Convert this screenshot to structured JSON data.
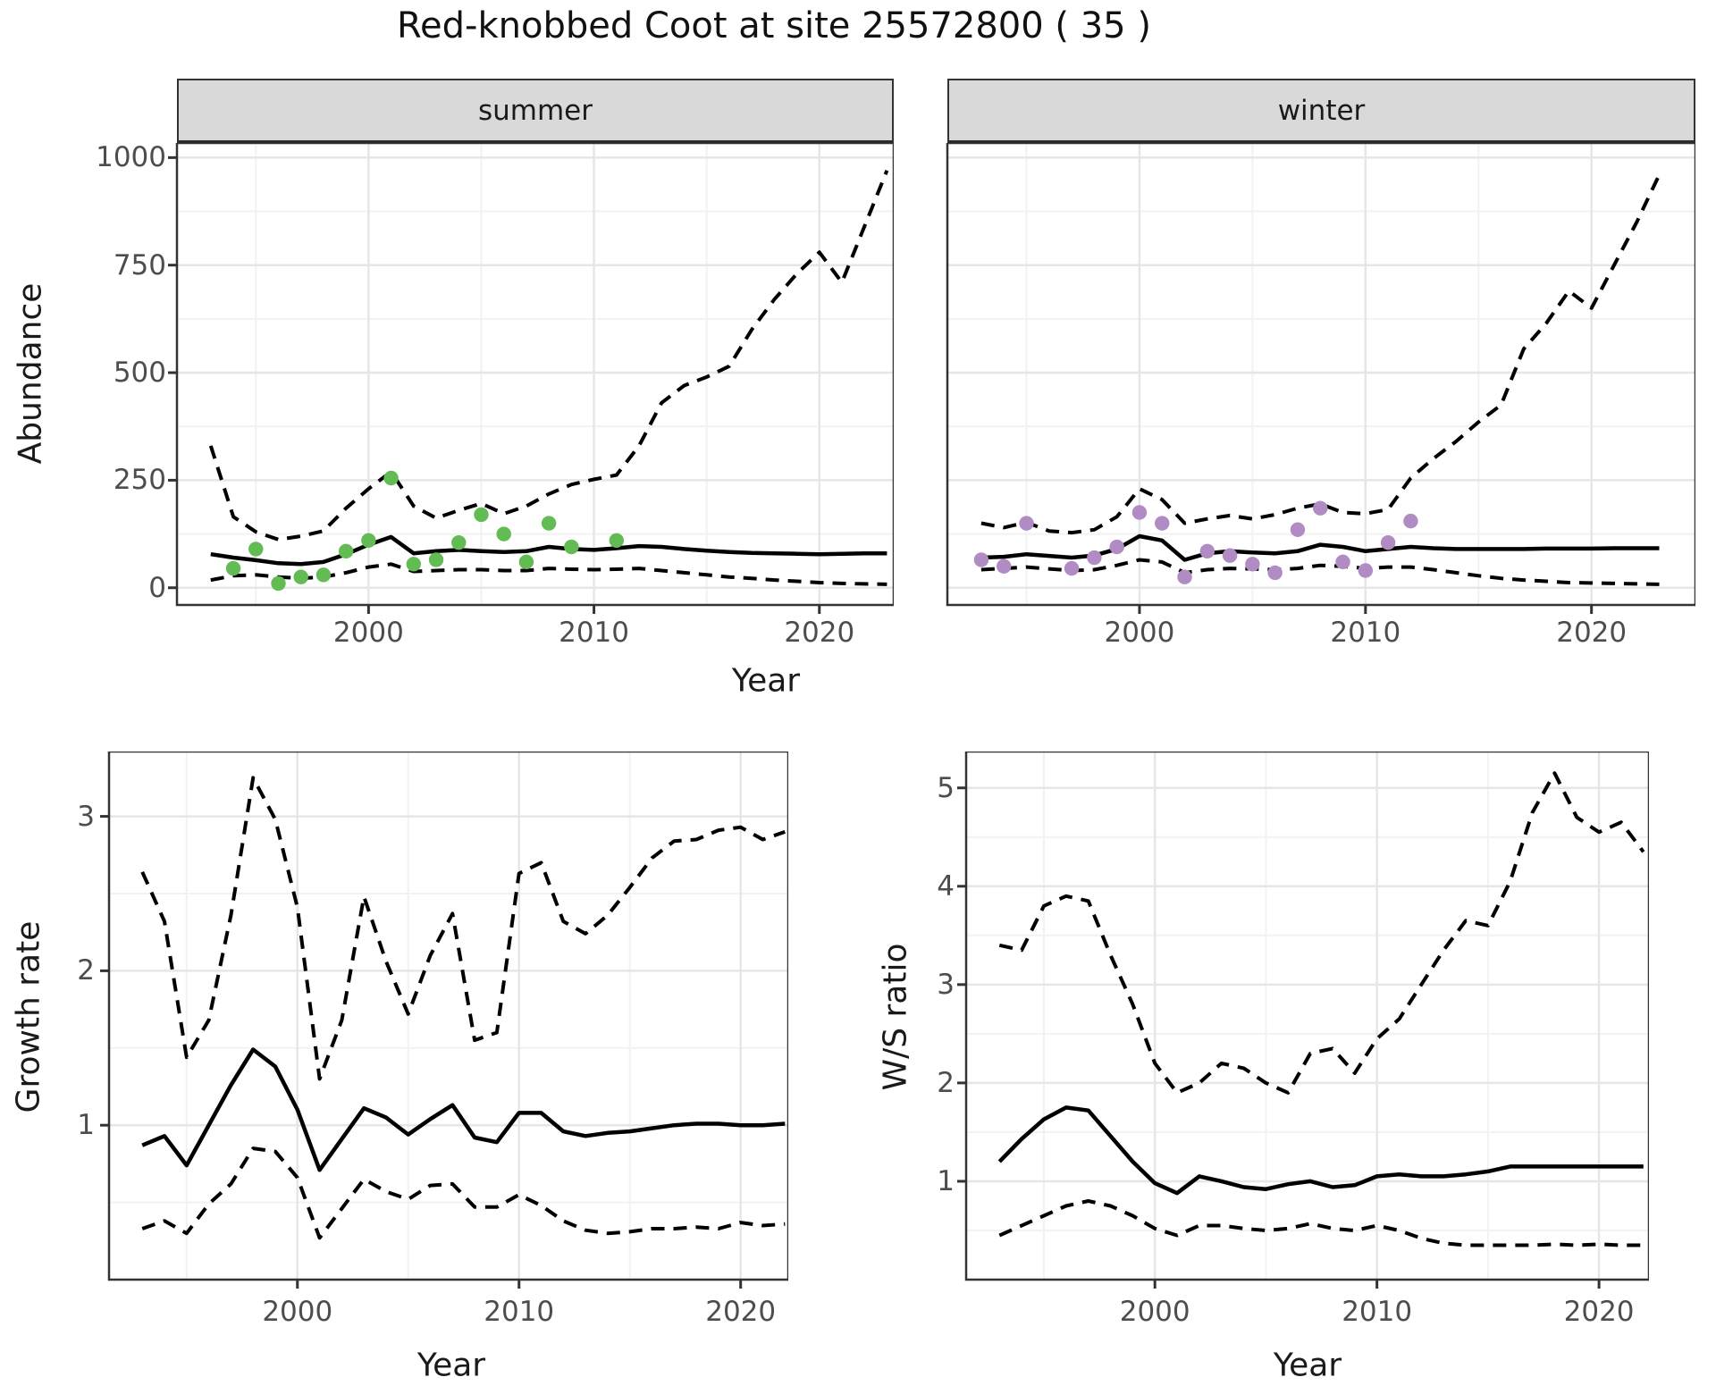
{
  "title": "Red-knobbed Coot at site 25572800 ( 35 )",
  "colors": {
    "summer_point": "#63bb54",
    "winter_point": "#b18bc4",
    "line": "#000000",
    "tick_text": "#4d4d4d",
    "axis_text": "#1a1a1a",
    "strip_bg": "#d9d9d9",
    "panel_border": "#333333",
    "grid_major": "#e6e6e6",
    "grid_minor": "#f2f2f2"
  },
  "top": {
    "ylabel": "Abundance",
    "xlabel": "Year",
    "facets": [
      "summer",
      "winter"
    ],
    "yticks": [
      0,
      250,
      500,
      750,
      1000
    ],
    "xticks": [
      2000,
      2010,
      2020
    ]
  },
  "bottom_left": {
    "ylabel": "Growth rate",
    "xlabel": "Year",
    "yticks": [
      1,
      2,
      3
    ],
    "xticks": [
      2000,
      2010,
      2020
    ]
  },
  "bottom_right": {
    "ylabel": "W/S ratio",
    "xlabel": "Year",
    "yticks": [
      1,
      2,
      3,
      4,
      5
    ],
    "xticks": [
      2000,
      2010,
      2020
    ]
  },
  "chart_data": [
    {
      "id": "abundance-summer",
      "type": "line",
      "title": "summer",
      "xlabel": "Year",
      "ylabel": "Abundance",
      "x_range": [
        1991.5,
        2023.3
      ],
      "y_range": [
        -40,
        1034
      ],
      "grid": true,
      "legend": "none",
      "years": [
        1993,
        1994,
        1995,
        1996,
        1997,
        1998,
        1999,
        2000,
        2001,
        2002,
        2003,
        2004,
        2005,
        2006,
        2007,
        2008,
        2009,
        2010,
        2011,
        2012,
        2013,
        2014,
        2015,
        2016,
        2017,
        2018,
        2019,
        2020,
        2021,
        2022,
        2023
      ],
      "series": [
        {
          "name": "estimate",
          "style": "solid",
          "values": [
            78,
            70,
            64,
            57,
            55,
            60,
            78,
            100,
            118,
            80,
            85,
            88,
            85,
            83,
            85,
            95,
            90,
            88,
            92,
            97,
            95,
            90,
            86,
            83,
            81,
            80,
            79,
            78,
            79,
            80,
            80
          ]
        },
        {
          "name": "upper_ci",
          "style": "dashed",
          "values": [
            330,
            165,
            130,
            112,
            120,
            132,
            185,
            230,
            270,
            190,
            162,
            180,
            196,
            172,
            190,
            218,
            240,
            252,
            262,
            330,
            430,
            470,
            490,
            515,
            600,
            670,
            730,
            780,
            710,
            840,
            970
          ]
        },
        {
          "name": "lower_ci",
          "style": "dashed",
          "values": [
            18,
            28,
            30,
            25,
            22,
            25,
            35,
            48,
            55,
            38,
            40,
            42,
            42,
            40,
            40,
            45,
            43,
            42,
            43,
            45,
            40,
            35,
            30,
            25,
            22,
            18,
            15,
            12,
            10,
            9,
            8
          ]
        }
      ],
      "points": {
        "name": "observed_counts",
        "color_key": "summer_point",
        "years": [
          1994,
          1995,
          1996,
          1997,
          1998,
          1999,
          2000,
          2001,
          2002,
          2003,
          2004,
          2005,
          2006,
          2007,
          2008,
          2009,
          2011
        ],
        "values": [
          45,
          90,
          10,
          25,
          30,
          85,
          110,
          255,
          55,
          65,
          105,
          170,
          125,
          60,
          150,
          95,
          110
        ]
      }
    },
    {
      "id": "abundance-winter",
      "type": "line",
      "title": "winter",
      "xlabel": "Year",
      "ylabel": "Abundance",
      "x_range": [
        1991.5,
        2024.6
      ],
      "y_range": [
        -40,
        1034
      ],
      "grid": true,
      "legend": "none",
      "years": [
        1993,
        1994,
        1995,
        1996,
        1997,
        1998,
        1999,
        2000,
        2001,
        2002,
        2003,
        2004,
        2005,
        2006,
        2007,
        2008,
        2009,
        2010,
        2011,
        2012,
        2013,
        2014,
        2015,
        2016,
        2017,
        2018,
        2019,
        2020,
        2021,
        2022,
        2023
      ],
      "series": [
        {
          "name": "estimate",
          "style": "solid",
          "values": [
            70,
            72,
            78,
            74,
            70,
            75,
            90,
            120,
            110,
            65,
            80,
            85,
            82,
            80,
            85,
            100,
            95,
            85,
            90,
            95,
            92,
            90,
            90,
            90,
            90,
            91,
            91,
            91,
            92,
            92,
            92
          ]
        },
        {
          "name": "upper_ci",
          "style": "dashed",
          "values": [
            150,
            140,
            152,
            132,
            128,
            135,
            165,
            230,
            205,
            150,
            160,
            168,
            160,
            170,
            185,
            195,
            175,
            172,
            182,
            255,
            300,
            340,
            385,
            425,
            555,
            615,
            690,
            650,
            750,
            850,
            960
          ]
        },
        {
          "name": "lower_ci",
          "style": "dashed",
          "values": [
            42,
            45,
            48,
            44,
            40,
            42,
            52,
            65,
            60,
            35,
            42,
            45,
            44,
            42,
            45,
            52,
            50,
            45,
            48,
            48,
            42,
            35,
            28,
            22,
            18,
            15,
            12,
            11,
            10,
            9,
            8
          ]
        }
      ],
      "points": {
        "name": "observed_counts",
        "color_key": "winter_point",
        "years": [
          1993,
          1994,
          1995,
          1997,
          1998,
          1999,
          2000,
          2001,
          2002,
          2003,
          2004,
          2005,
          2006,
          2007,
          2008,
          2009,
          2010,
          2011,
          2012
        ],
        "values": [
          65,
          50,
          150,
          45,
          70,
          95,
          175,
          150,
          25,
          85,
          75,
          55,
          35,
          135,
          185,
          60,
          40,
          105,
          155
        ]
      }
    },
    {
      "id": "growth-rate",
      "type": "line",
      "title": "Growth rate",
      "xlabel": "Year",
      "ylabel": "Growth rate",
      "x_range": [
        1991.5,
        2022.15
      ],
      "y_range": [
        0,
        3.42
      ],
      "grid": true,
      "legend": "none",
      "years": [
        1993,
        1994,
        1995,
        1996,
        1997,
        1998,
        1999,
        2000,
        2001,
        2002,
        2003,
        2004,
        2005,
        2006,
        2007,
        2008,
        2009,
        2010,
        2011,
        2012,
        2013,
        2014,
        2015,
        2016,
        2017,
        2018,
        2019,
        2020,
        2021,
        2022
      ],
      "series": [
        {
          "name": "estimate",
          "style": "solid",
          "values": [
            0.87,
            0.93,
            0.74,
            1.0,
            1.26,
            1.49,
            1.38,
            1.1,
            0.71,
            0.91,
            1.11,
            1.05,
            0.94,
            1.04,
            1.13,
            0.92,
            0.89,
            1.08,
            1.08,
            0.96,
            0.93,
            0.95,
            0.96,
            0.98,
            1.0,
            1.01,
            1.01,
            1.0,
            1.0,
            1.01
          ]
        },
        {
          "name": "upper_ci",
          "style": "dashed",
          "values": [
            2.64,
            2.32,
            1.44,
            1.68,
            2.36,
            3.25,
            2.98,
            2.41,
            1.3,
            1.68,
            2.48,
            2.06,
            1.72,
            2.1,
            2.37,
            1.55,
            1.6,
            2.63,
            2.7,
            2.32,
            2.24,
            2.36,
            2.54,
            2.73,
            2.84,
            2.85,
            2.91,
            2.93,
            2.85,
            2.9
          ]
        },
        {
          "name": "lower_ci",
          "style": "dashed",
          "values": [
            0.33,
            0.38,
            0.3,
            0.49,
            0.62,
            0.85,
            0.83,
            0.66,
            0.27,
            0.46,
            0.65,
            0.57,
            0.52,
            0.61,
            0.62,
            0.47,
            0.47,
            0.55,
            0.48,
            0.38,
            0.32,
            0.3,
            0.31,
            0.33,
            0.33,
            0.34,
            0.33,
            0.37,
            0.35,
            0.36
          ]
        }
      ]
    },
    {
      "id": "ws-ratio",
      "type": "line",
      "title": "W/S ratio",
      "xlabel": "Year",
      "ylabel": "W/S ratio",
      "x_range": [
        1991.5,
        2022.25
      ],
      "y_range": [
        0,
        5.37
      ],
      "grid": true,
      "legend": "none",
      "years": [
        1993,
        1994,
        1995,
        1996,
        1997,
        1998,
        1999,
        2000,
        2001,
        2002,
        2003,
        2004,
        2005,
        2006,
        2007,
        2008,
        2009,
        2010,
        2011,
        2012,
        2013,
        2014,
        2015,
        2016,
        2017,
        2018,
        2019,
        2020,
        2021,
        2022
      ],
      "series": [
        {
          "name": "estimate",
          "style": "solid",
          "values": [
            1.2,
            1.43,
            1.63,
            1.75,
            1.72,
            1.46,
            1.2,
            0.98,
            0.88,
            1.05,
            1.0,
            0.94,
            0.92,
            0.97,
            1.0,
            0.94,
            0.96,
            1.05,
            1.07,
            1.05,
            1.05,
            1.07,
            1.1,
            1.15,
            1.15,
            1.15,
            1.15,
            1.15,
            1.15,
            1.15
          ]
        },
        {
          "name": "upper_ci",
          "style": "dashed",
          "values": [
            3.4,
            3.35,
            3.8,
            3.9,
            3.85,
            3.3,
            2.8,
            2.2,
            1.9,
            2.0,
            2.2,
            2.15,
            2.0,
            1.9,
            2.3,
            2.35,
            2.1,
            2.45,
            2.65,
            3.0,
            3.35,
            3.65,
            3.6,
            4.05,
            4.75,
            5.15,
            4.7,
            4.55,
            4.65,
            4.35
          ]
        },
        {
          "name": "lower_ci",
          "style": "dashed",
          "values": [
            0.45,
            0.55,
            0.65,
            0.75,
            0.8,
            0.75,
            0.65,
            0.52,
            0.45,
            0.55,
            0.55,
            0.52,
            0.5,
            0.52,
            0.57,
            0.52,
            0.5,
            0.55,
            0.5,
            0.42,
            0.37,
            0.35,
            0.35,
            0.35,
            0.35,
            0.36,
            0.35,
            0.36,
            0.35,
            0.35
          ]
        }
      ]
    }
  ]
}
